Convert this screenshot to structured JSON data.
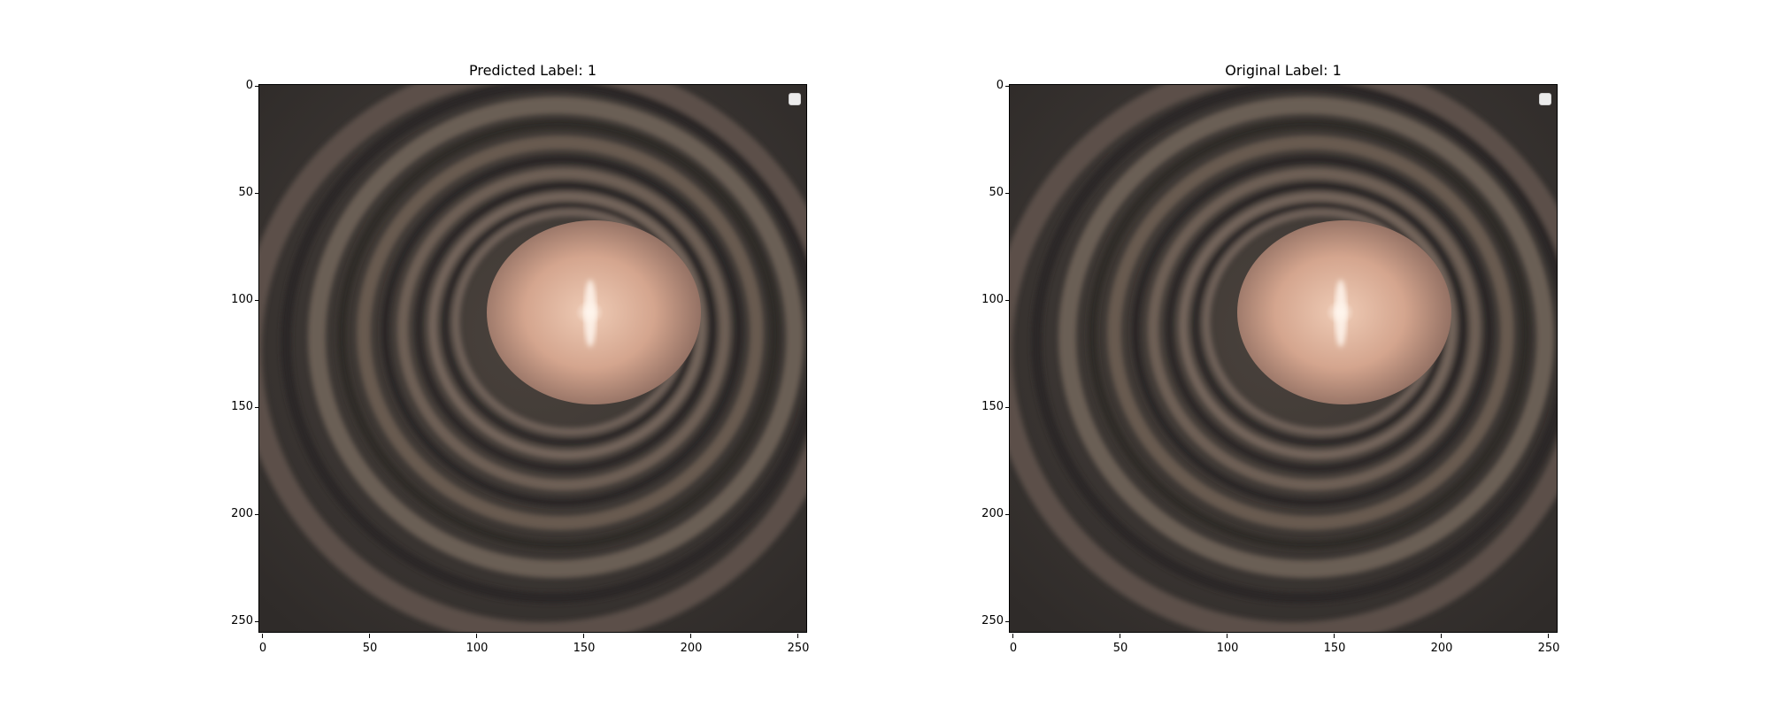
{
  "panels": [
    {
      "title": "Predicted Label: 1",
      "x_ticks": [
        "0",
        "50",
        "100",
        "150",
        "200",
        "250"
      ],
      "y_ticks": [
        "0",
        "50",
        "100",
        "150",
        "200",
        "250"
      ]
    },
    {
      "title": "Original Label: 1",
      "x_ticks": [
        "0",
        "50",
        "100",
        "150",
        "200",
        "250"
      ],
      "y_ticks": [
        "0",
        "50",
        "100",
        "150",
        "200",
        "250"
      ]
    }
  ],
  "image_colors": {
    "background": "#3a3532",
    "ring_light": "#6b5e54",
    "ring_dark": "#2c2826",
    "center_light": "#e0b49c",
    "center_highlight": "#fff4ea"
  }
}
